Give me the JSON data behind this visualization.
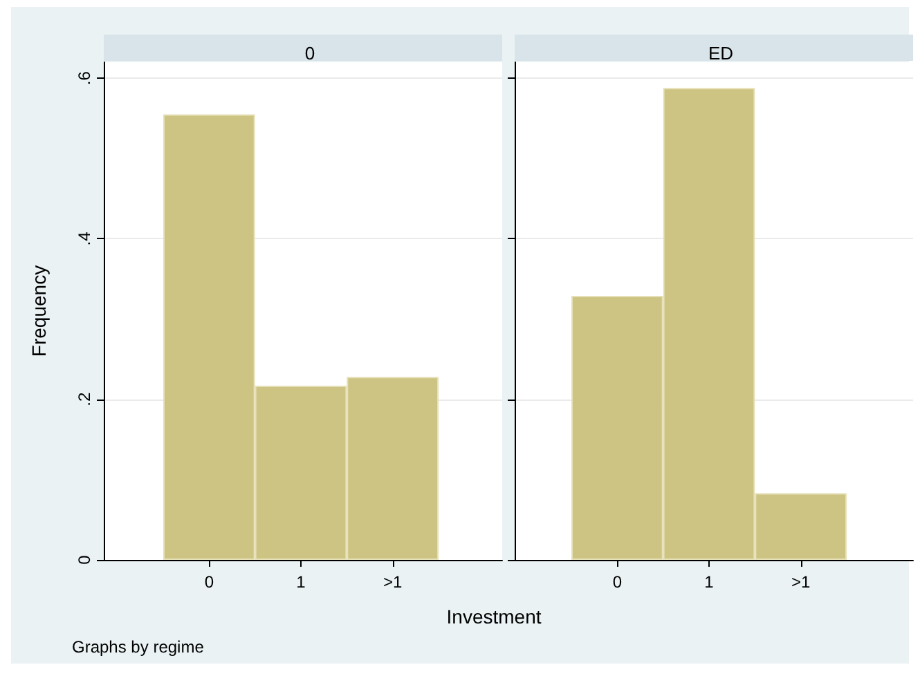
{
  "chart_data": [
    {
      "type": "bar",
      "title": "0",
      "xlabel": "Investment",
      "ylabel": "Frequency",
      "annotations": [
        "Graphs by regime"
      ],
      "categories": [
        "0",
        "1",
        ">1"
      ],
      "values": [
        0.555,
        0.217,
        0.228
      ],
      "color": "#cdc382",
      "ylim": [
        0,
        0.62
      ],
      "yticks": [
        0,
        {
          "value": 0.2,
          "label": ".2"
        },
        {
          "value": 0.4,
          "label": ".4"
        },
        {
          "value": 0.6,
          "label": ".6"
        }
      ],
      "grid": "y"
    },
    {
      "type": "bar",
      "title": "ED",
      "categories": [
        "0",
        "1",
        ">1"
      ],
      "values": [
        0.329,
        0.588,
        0.083
      ],
      "color": "#cdc382",
      "ylim": [
        0,
        0.62
      ],
      "yticks": [
        0,
        0.2,
        0.4,
        0.6
      ],
      "grid": "y",
      "tick_labels": "x"
    }
  ]
}
